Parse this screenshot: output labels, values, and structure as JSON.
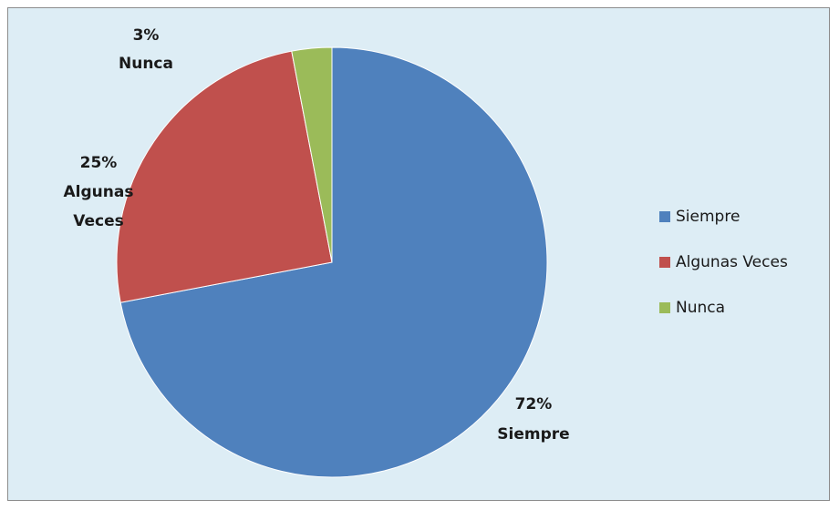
{
  "chart_data": {
    "type": "pie",
    "title": "",
    "categories": [
      "Siempre",
      "Algunas Veces",
      "Nunca"
    ],
    "values": [
      72,
      25,
      3
    ],
    "value_unit": "%",
    "colors": [
      "#4f81bd",
      "#c0504d",
      "#9bbb59"
    ],
    "data_labels": [
      {
        "percent": "72%",
        "category": "Siempre"
      },
      {
        "percent": "25%",
        "category_lines": [
          "Algunas",
          "Veces"
        ]
      },
      {
        "percent": "3%",
        "category": "Nunca"
      }
    ],
    "legend": {
      "placement": "right",
      "entries": [
        {
          "label": "Siempre",
          "color": "#4f81bd"
        },
        {
          "label": "Algunas Veces",
          "color": "#c0504d"
        },
        {
          "label": "Nunca",
          "color": "#9bbb59"
        }
      ]
    },
    "background_color": "#ddedf5"
  }
}
